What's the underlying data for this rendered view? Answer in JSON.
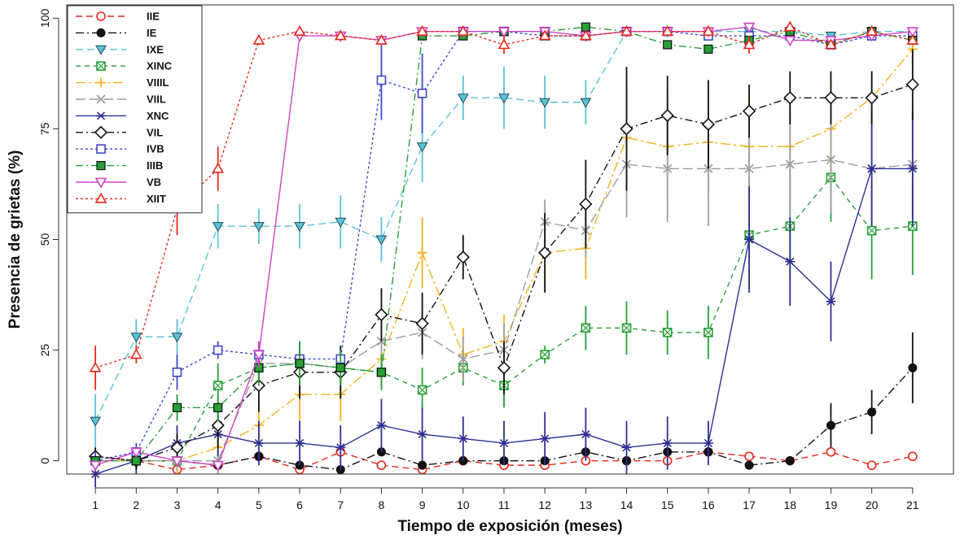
{
  "chart_data": {
    "type": "line",
    "title": "",
    "xlabel": "Tiempo de exposición (meses)",
    "ylabel": "Presencia de grietas (%)",
    "x": [
      1,
      2,
      3,
      4,
      5,
      6,
      7,
      8,
      9,
      10,
      11,
      12,
      13,
      14,
      15,
      16,
      17,
      18,
      19,
      20,
      21
    ],
    "x_ticks": [
      "1",
      "2",
      "3",
      "4",
      "5",
      "6",
      "7",
      "8",
      "9",
      "10",
      "11",
      "12",
      "13",
      "14",
      "15",
      "16",
      "17",
      "18",
      "19",
      "20",
      "21"
    ],
    "y_ticks": [
      "0",
      "25",
      "50",
      "75",
      "100"
    ],
    "xlim": [
      0.3,
      22.0
    ],
    "ylim": [
      -3,
      103
    ],
    "legend_position": "top-left",
    "grid": false,
    "series": [
      {
        "name": "IIE",
        "color": "#e8291c",
        "dash": "8,5",
        "marker": "circle-open",
        "values": [
          1,
          0,
          -2,
          -1,
          1,
          -2,
          2,
          -1,
          -2,
          0,
          -1,
          -1,
          0,
          0,
          0,
          2,
          1,
          0,
          2,
          -1,
          1
        ],
        "errors": [
          1,
          1,
          1,
          1,
          1,
          1,
          1,
          1,
          1,
          1,
          1,
          1,
          1,
          1,
          1,
          1,
          1,
          1,
          1,
          1,
          1
        ]
      },
      {
        "name": "IE",
        "color": "#111111",
        "dash": "10,4,2,4",
        "marker": "circle-filled",
        "values": [
          1,
          0,
          0,
          -1,
          1,
          -1,
          -2,
          2,
          -1,
          0,
          0,
          0,
          2,
          0,
          2,
          2,
          -1,
          0,
          8,
          11,
          21
        ],
        "errors": [
          1,
          1,
          1,
          1,
          1,
          1,
          1,
          1,
          1,
          1,
          1,
          1,
          1,
          1,
          1,
          1,
          1,
          1,
          5,
          5,
          8
        ]
      },
      {
        "name": "IXE",
        "color": "#5bc3d8",
        "dash": "9,5",
        "marker": "triangle-down-filled",
        "values": [
          9,
          28,
          28,
          53,
          53,
          53,
          54,
          50,
          71,
          82,
          82,
          81,
          81,
          97,
          97,
          97,
          97,
          97,
          96,
          97,
          97
        ],
        "errors": [
          6,
          4,
          4,
          5,
          4,
          5,
          6,
          5,
          8,
          5,
          7,
          6,
          5,
          1,
          1,
          1,
          1,
          1,
          1,
          1,
          1
        ]
      },
      {
        "name": "XINC",
        "color": "#27a035",
        "dash": "6,5",
        "marker": "square-cross",
        "values": [
          0,
          0,
          0,
          17,
          21,
          22,
          21,
          20,
          16,
          21,
          17,
          24,
          30,
          30,
          29,
          29,
          51,
          53,
          64,
          52,
          53
        ],
        "errors": [
          2,
          2,
          3,
          5,
          5,
          5,
          4,
          4,
          5,
          4,
          5,
          2,
          5,
          6,
          5,
          6,
          12,
          12,
          10,
          11,
          11
        ]
      },
      {
        "name": "VIIIL",
        "color": "#f5b31a",
        "dash": "12,4,3,4",
        "marker": "plus",
        "values": [
          0,
          0,
          0,
          3,
          8,
          15,
          15,
          23,
          47,
          24,
          27,
          47,
          48,
          73,
          71,
          72,
          71,
          71,
          75,
          82,
          93
        ],
        "errors": [
          2,
          2,
          3,
          5,
          5,
          6,
          6,
          6,
          8,
          6,
          6,
          7,
          7,
          12,
          12,
          12,
          12,
          12,
          12,
          6,
          5
        ]
      },
      {
        "name": "VIIL",
        "color": "#9e9e9e",
        "dash": "12,5",
        "marker": "x",
        "values": [
          0,
          0,
          0,
          0,
          22,
          22,
          21,
          27,
          29,
          23,
          25,
          54,
          52,
          67,
          66,
          66,
          66,
          67,
          68,
          66,
          67
        ],
        "errors": [
          1,
          1,
          2,
          3,
          5,
          5,
          5,
          5,
          6,
          5,
          6,
          5,
          6,
          12,
          12,
          13,
          12,
          12,
          12,
          12,
          12
        ]
      },
      {
        "name": "XNC",
        "color": "#2e3192",
        "dash": "",
        "marker": "asterisk",
        "values": [
          -3,
          0,
          4,
          6,
          4,
          4,
          3,
          8,
          6,
          5,
          4,
          5,
          6,
          3,
          4,
          4,
          50,
          45,
          36,
          66,
          66
        ],
        "errors": [
          3,
          3,
          4,
          5,
          5,
          5,
          5,
          6,
          6,
          5,
          5,
          6,
          6,
          6,
          6,
          5,
          12,
          10,
          9,
          13,
          13
        ]
      },
      {
        "name": "VIL",
        "color": "#111111",
        "dash": "9,4,2,4",
        "marker": "diamond-open",
        "values": [
          1,
          0,
          3,
          8,
          17,
          20,
          20,
          33,
          31,
          46,
          21,
          47,
          58,
          75,
          78,
          76,
          79,
          82,
          82,
          82,
          85
        ],
        "errors": [
          2,
          2,
          3,
          5,
          6,
          6,
          6,
          6,
          7,
          5,
          6,
          9,
          10,
          14,
          9,
          10,
          6,
          6,
          6,
          6,
          8
        ]
      },
      {
        "name": "IVB",
        "color": "#3f48cc",
        "dash": "3,3",
        "marker": "square-open",
        "values": [
          0,
          2,
          20,
          25,
          24,
          23,
          23,
          86,
          83,
          97,
          97,
          96,
          96,
          97,
          97,
          96,
          96,
          96,
          94,
          96,
          96
        ],
        "errors": [
          2,
          2,
          4,
          2,
          2,
          2,
          2,
          9,
          9,
          1,
          1,
          1,
          1,
          1,
          1,
          1,
          1,
          1,
          1,
          1,
          1
        ]
      },
      {
        "name": "IIIB",
        "color": "#27a035",
        "dash": "9,4,2,4",
        "marker": "square-filled",
        "values": [
          0,
          0,
          12,
          12,
          21,
          22,
          21,
          20,
          96,
          96,
          97,
          97,
          98,
          97,
          94,
          93,
          95,
          97,
          94,
          97,
          95
        ],
        "errors": [
          1,
          1,
          3,
          3,
          4,
          5,
          4,
          4,
          1,
          1,
          1,
          1,
          1,
          1,
          1,
          1,
          1,
          1,
          1,
          1,
          1
        ]
      },
      {
        "name": "VB",
        "color": "#cf45c8",
        "dash": "",
        "marker": "triangle-down-open",
        "values": [
          -1,
          2,
          0,
          -1,
          24,
          96,
          96,
          95,
          97,
          97,
          97,
          97,
          96,
          97,
          97,
          97,
          98,
          95,
          95,
          96,
          97
        ],
        "errors": [
          1,
          1,
          1,
          1,
          3,
          1,
          1,
          1,
          1,
          1,
          1,
          1,
          1,
          1,
          1,
          1,
          1,
          1,
          1,
          1,
          1
        ]
      },
      {
        "name": "XIIT",
        "color": "#e8291c",
        "dash": "3,3",
        "marker": "triangle-up-open",
        "values": [
          21,
          24,
          57,
          66,
          95,
          97,
          96,
          95,
          97,
          97,
          94,
          96,
          96,
          97,
          97,
          97,
          94,
          98,
          94,
          97,
          95
        ],
        "errors": [
          5,
          2,
          6,
          5,
          1,
          1,
          1,
          1,
          1,
          1,
          2,
          1,
          1,
          1,
          1,
          1,
          2,
          1,
          1,
          1,
          1
        ]
      }
    ]
  }
}
